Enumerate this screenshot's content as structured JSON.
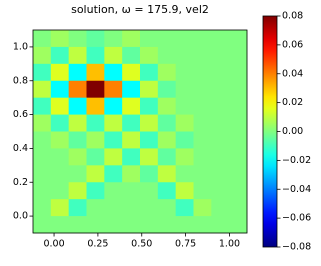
{
  "chart_data": {
    "type": "heatmap",
    "title": "solution, ω = 175.9, vel2",
    "colormap": "jet",
    "xlim": [
      -0.12,
      1.1
    ],
    "ylim": [
      -0.1,
      1.1
    ],
    "xticks": [
      {
        "value": 0,
        "label": "0.00"
      },
      {
        "value": 0.25,
        "label": "0.25"
      },
      {
        "value": 0.5,
        "label": "0.50"
      },
      {
        "value": 0.75,
        "label": "0.75"
      },
      {
        "value": 1,
        "label": "1.00"
      }
    ],
    "yticks": [
      {
        "value": 0,
        "label": "0.0"
      },
      {
        "value": 0.2,
        "label": "0.2"
      },
      {
        "value": 0.4,
        "label": "0.4"
      },
      {
        "value": 0.6,
        "label": "0.6"
      },
      {
        "value": 0.8,
        "label": "0.8"
      },
      {
        "value": 1,
        "label": "1.0"
      }
    ],
    "colorbar_lim": [
      -0.08,
      0.08
    ],
    "colorbar_ticks": [
      {
        "value": -0.08,
        "label": "−0.08"
      },
      {
        "value": -0.06,
        "label": "−0.06"
      },
      {
        "value": -0.04,
        "label": "−0.04"
      },
      {
        "value": -0.02,
        "label": "−0.02"
      },
      {
        "value": 0,
        "label": "0.00"
      },
      {
        "value": 0.02,
        "label": "0.02"
      },
      {
        "value": 0.04,
        "label": "0.04"
      },
      {
        "value": 0.06,
        "label": "0.06"
      },
      {
        "value": 0.08,
        "label": "0.08"
      }
    ],
    "z": [
      [
        0,
        0.005,
        0,
        -0.005,
        0,
        0.005,
        0,
        0,
        0,
        0,
        0,
        0
      ],
      [
        0.005,
        -0.01,
        0.01,
        -0.01,
        0.01,
        -0.005,
        0.005,
        0,
        0,
        0,
        0,
        0
      ],
      [
        -0.01,
        0.015,
        -0.02,
        0.03,
        -0.02,
        0.015,
        -0.01,
        0.005,
        0,
        0,
        0,
        0
      ],
      [
        0.01,
        -0.02,
        0.04,
        0.08,
        0.04,
        -0.02,
        0.01,
        -0.005,
        0,
        0,
        0,
        0
      ],
      [
        -0.01,
        0.015,
        -0.02,
        0.03,
        -0.02,
        0.015,
        -0.01,
        0.005,
        0,
        0,
        0,
        0
      ],
      [
        0.005,
        -0.01,
        0.01,
        -0.01,
        0.01,
        -0.01,
        0.01,
        -0.005,
        0.005,
        0,
        0,
        0
      ],
      [
        0,
        0.005,
        -0.005,
        0.005,
        -0.01,
        0.01,
        -0.01,
        0.005,
        -0.005,
        0,
        0,
        0
      ],
      [
        0,
        0,
        0.005,
        -0.005,
        0.01,
        -0.01,
        0.01,
        -0.005,
        0.005,
        0,
        0,
        0
      ],
      [
        0,
        0,
        0,
        0.01,
        -0.01,
        0.005,
        -0.005,
        0.01,
        0,
        0,
        0,
        0
      ],
      [
        0,
        0,
        0.01,
        -0.01,
        0,
        0,
        0,
        -0.01,
        0.01,
        0,
        0,
        0
      ],
      [
        0,
        0.01,
        -0.01,
        0,
        0,
        0,
        0,
        0,
        -0.01,
        0.005,
        0,
        0
      ],
      [
        0,
        0,
        0,
        0,
        0,
        0,
        0,
        0,
        0,
        0,
        0,
        0
      ]
    ]
  }
}
